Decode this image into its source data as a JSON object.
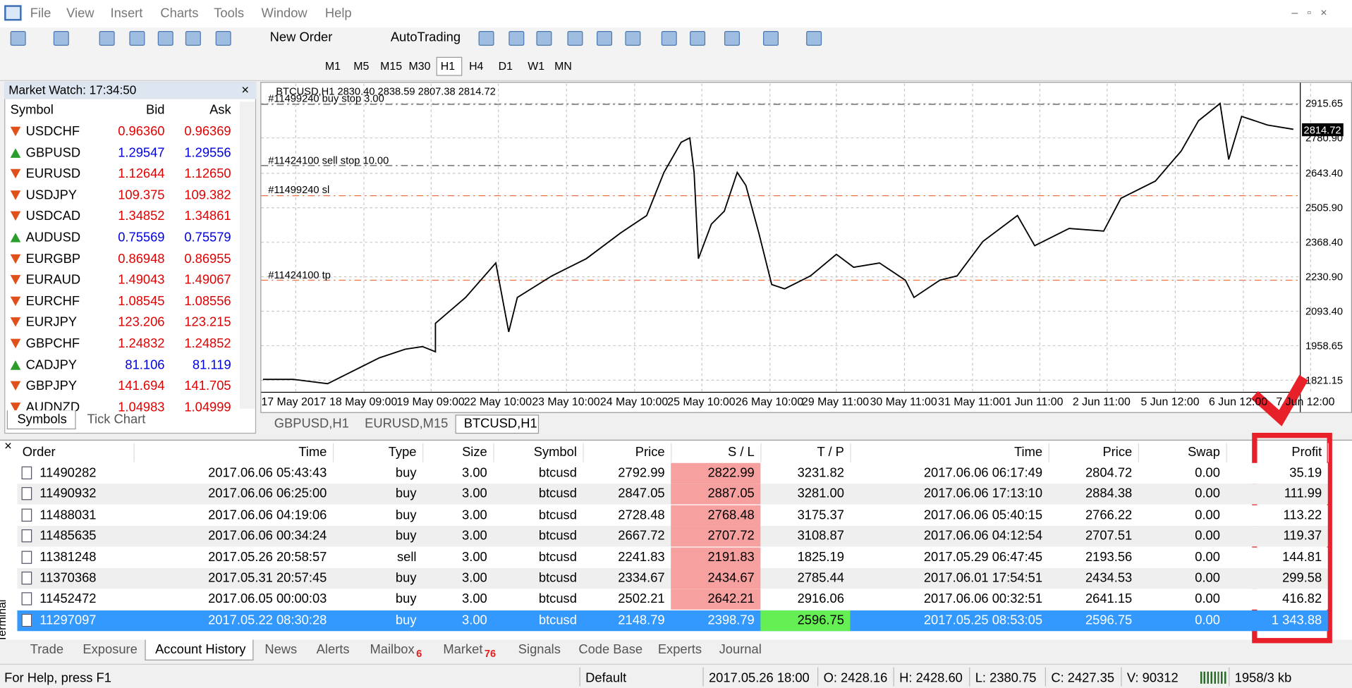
{
  "menu": [
    "File",
    "View",
    "Insert",
    "Charts",
    "Tools",
    "Window",
    "Help"
  ],
  "toolbar": {
    "new_order": "New Order",
    "autotrading": "AutoTrading",
    "timeframes": [
      "M1",
      "M5",
      "M15",
      "M30",
      "H1",
      "H4",
      "D1",
      "W1",
      "MN"
    ],
    "active_timeframe": 4
  },
  "market_watch": {
    "title": "Market Watch: 17:34:50",
    "columns": [
      "Symbol",
      "Bid",
      "Ask"
    ],
    "rows": [
      {
        "symbol": "USDCHF",
        "bid": "0.96360",
        "ask": "0.96369",
        "color": "#e00000"
      },
      {
        "symbol": "GBPUSD",
        "bid": "1.29547",
        "ask": "1.29556",
        "color": "#0000e0"
      },
      {
        "symbol": "EURUSD",
        "bid": "1.12644",
        "ask": "1.12650",
        "color": "#e00000"
      },
      {
        "symbol": "USDJPY",
        "bid": "109.375",
        "ask": "109.382",
        "color": "#e00000"
      },
      {
        "symbol": "USDCAD",
        "bid": "1.34852",
        "ask": "1.34861",
        "color": "#e00000"
      },
      {
        "symbol": "AUDUSD",
        "bid": "0.75569",
        "ask": "0.75579",
        "color": "#0000e0"
      },
      {
        "symbol": "EURGBP",
        "bid": "0.86948",
        "ask": "0.86955",
        "color": "#e00000"
      },
      {
        "symbol": "EURAUD",
        "bid": "1.49043",
        "ask": "1.49067",
        "color": "#e00000"
      },
      {
        "symbol": "EURCHF",
        "bid": "1.08545",
        "ask": "1.08556",
        "color": "#e00000"
      },
      {
        "symbol": "EURJPY",
        "bid": "123.206",
        "ask": "123.215",
        "color": "#e00000"
      },
      {
        "symbol": "GBPCHF",
        "bid": "1.24832",
        "ask": "1.24852",
        "color": "#e00000"
      },
      {
        "symbol": "CADJPY",
        "bid": "81.106",
        "ask": "81.119",
        "color": "#0000e0"
      },
      {
        "symbol": "GBPJPY",
        "bid": "141.694",
        "ask": "141.705",
        "color": "#e00000"
      },
      {
        "symbol": "AUDNZD",
        "bid": "1.04983",
        "ask": "1.04999",
        "color": "#e00000"
      }
    ],
    "tabs": [
      "Symbols",
      "Tick Chart"
    ]
  },
  "chart": {
    "header": "BTCUSD,H1  2830.40 2838.59 2807.38 2814.72",
    "price_labels": [
      "2915.65",
      "2780.90",
      "2643.40",
      "2505.90",
      "2368.40",
      "2230.90",
      "2093.40",
      "1958.65",
      "1821.15"
    ],
    "current_price": "2814.72",
    "time_labels": [
      "17 May 2017",
      "18 May 09:00",
      "19 May 09:00",
      "22 May 10:00",
      "23 May 10:00",
      "24 May 10:00",
      "25 May 10:00",
      "26 May 10:00",
      "29 May 11:00",
      "30 May 11:00",
      "31 May 11:00",
      "1 Jun 11:00",
      "2 Jun 11:00",
      "5 Jun 12:00",
      "6 Jun 12:00",
      "7 Jun 12:00"
    ],
    "order_lines": [
      "#11499240 buy stop 3.00",
      "#11424100 sell stop 10.00",
      "#11499240 sl",
      "#11424100 tp"
    ],
    "tabs": [
      "GBPUSD,H1",
      "EURUSD,M15",
      "BTCUSD,H1"
    ],
    "active_tab": 2
  },
  "terminal": {
    "side_label": "Terminal",
    "columns": [
      "Order",
      "Time",
      "Type",
      "Size",
      "Symbol",
      "Price",
      "S / L",
      "T / P",
      "Time",
      "Price",
      "Swap",
      "Profit"
    ],
    "rows": [
      [
        "11490282",
        "2017.06.06 05:43:43",
        "buy",
        "3.00",
        "btcusd",
        "2792.99",
        "2822.99",
        "3231.82",
        "2017.06.06 06:17:49",
        "2804.72",
        "0.00",
        "35.19"
      ],
      [
        "11490932",
        "2017.06.06 06:25:00",
        "buy",
        "3.00",
        "btcusd",
        "2847.05",
        "2887.05",
        "3281.00",
        "2017.06.06 17:13:10",
        "2884.38",
        "0.00",
        "111.99"
      ],
      [
        "11488031",
        "2017.06.06 04:19:06",
        "buy",
        "3.00",
        "btcusd",
        "2728.48",
        "2768.48",
        "3175.37",
        "2017.06.06 05:40:15",
        "2766.22",
        "0.00",
        "113.22"
      ],
      [
        "11485635",
        "2017.06.06 00:34:24",
        "buy",
        "3.00",
        "btcusd",
        "2667.72",
        "2707.72",
        "3108.87",
        "2017.06.06 04:12:54",
        "2707.51",
        "0.00",
        "119.37"
      ],
      [
        "11381248",
        "2017.05.26 20:58:57",
        "sell",
        "3.00",
        "btcusd",
        "2241.83",
        "2191.83",
        "1825.19",
        "2017.05.29 06:47:45",
        "2193.56",
        "0.00",
        "144.81"
      ],
      [
        "11370368",
        "2017.05.31 20:57:45",
        "buy",
        "3.00",
        "btcusd",
        "2334.67",
        "2434.67",
        "2785.44",
        "2017.06.01 17:54:51",
        "2434.53",
        "0.00",
        "299.58"
      ],
      [
        "11452472",
        "2017.06.05 00:00:03",
        "buy",
        "3.00",
        "btcusd",
        "2502.21",
        "2642.21",
        "2916.06",
        "2017.06.06 00:32:51",
        "2641.15",
        "0.00",
        "416.82"
      ],
      [
        "11297097",
        "2017.05.22 08:30:28",
        "buy",
        "3.00",
        "btcusd",
        "2148.79",
        "2398.79",
        "2596.75",
        "2017.05.25 08:53:05",
        "2596.75",
        "0.00",
        "1 343.88"
      ]
    ],
    "selected_row": 7,
    "tabs": [
      {
        "label": "Trade"
      },
      {
        "label": "Exposure"
      },
      {
        "label": "Account History"
      },
      {
        "label": "News"
      },
      {
        "label": "Alerts"
      },
      {
        "label": "Mailbox",
        "badge": "6"
      },
      {
        "label": "Market",
        "badge": "76"
      },
      {
        "label": "Signals"
      },
      {
        "label": "Code Base"
      },
      {
        "label": "Experts"
      },
      {
        "label": "Journal"
      }
    ],
    "active_tab": 2
  },
  "status_bar": [
    "For Help, press F1",
    "Default",
    "2017.05.26 18:00",
    "O: 2428.16",
    "H: 2428.60",
    "L: 2380.75",
    "C: 2427.35",
    "V: 90312",
    "1958/3 kb"
  ]
}
